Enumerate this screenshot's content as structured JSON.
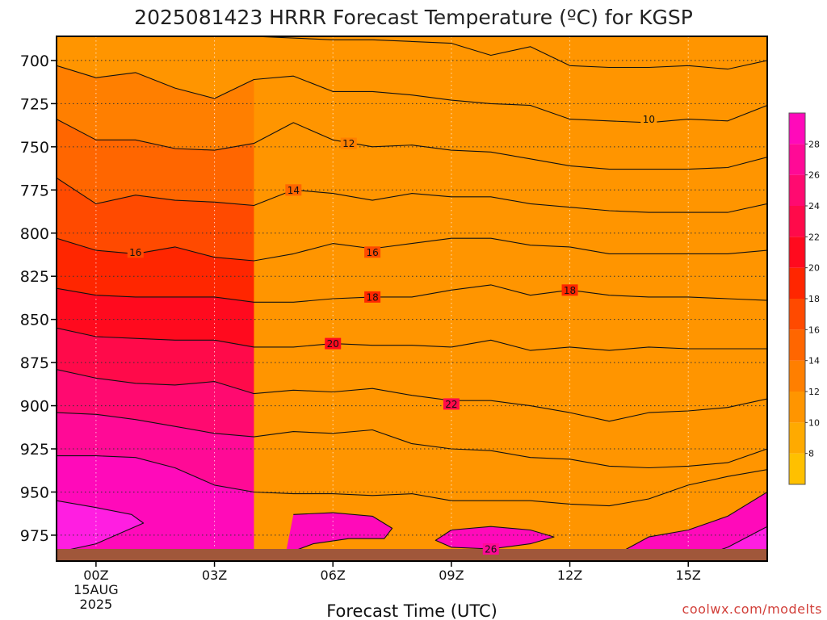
{
  "chart_data": {
    "type": "contour",
    "title": "2025081423 HRRR Forecast Temperature (ºC) for KGSP",
    "xlabel": "Forecast Time (UTC)",
    "ylabel": "",
    "credit": "coolwx.com/modelts",
    "x_ticks": [
      {
        "hour": 0,
        "label": "00Z",
        "sub": [
          "15AUG",
          "2025"
        ]
      },
      {
        "hour": 3,
        "label": "03Z",
        "sub": []
      },
      {
        "hour": 6,
        "label": "06Z",
        "sub": []
      },
      {
        "hour": 9,
        "label": "09Z",
        "sub": []
      },
      {
        "hour": 12,
        "label": "12Z",
        "sub": []
      },
      {
        "hour": 15,
        "label": "15Z",
        "sub": []
      }
    ],
    "xlim": [
      -1,
      17
    ],
    "y_ticks": [
      700,
      725,
      750,
      775,
      800,
      825,
      850,
      875,
      900,
      925,
      950,
      975
    ],
    "ylim": [
      686,
      990
    ],
    "y_inverted": true,
    "grid": true,
    "surface_color": "#a0573a",
    "colorbar": {
      "ticks": [
        8,
        10,
        12,
        14,
        16,
        18,
        20,
        22,
        24,
        26,
        28
      ],
      "range": [
        6,
        30
      ],
      "colors": [
        "#ffc000",
        "#ffaa00",
        "#ff9500",
        "#ff7f00",
        "#ff6600",
        "#ff4a00",
        "#ff2600",
        "#ff0a1e",
        "#ff0a4a",
        "#ff0a70",
        "#ff0a96",
        "#ff0aba",
        "#ff1ee1"
      ]
    },
    "contour_labels": [
      {
        "hour": 14,
        "p": 734,
        "text": "10"
      },
      {
        "hour": 6.4,
        "p": 748,
        "text": "12"
      },
      {
        "hour": 5.0,
        "p": 775,
        "text": "14"
      },
      {
        "hour": 1.0,
        "p": 811,
        "text": "16"
      },
      {
        "hour": 7.0,
        "p": 811,
        "text": "16"
      },
      {
        "hour": 7.0,
        "p": 837,
        "text": "18"
      },
      {
        "hour": 12.0,
        "p": 833,
        "text": "18"
      },
      {
        "hour": 6.0,
        "p": 864,
        "text": "20"
      },
      {
        "hour": 9.0,
        "p": 899,
        "text": "22"
      },
      {
        "hour": 10.0,
        "p": 983,
        "text": "26"
      }
    ],
    "contours": [
      {
        "level": 8,
        "x": [
          4.0,
          6.0,
          7.0,
          8.0,
          9.0,
          10.0,
          11.0,
          12.0,
          13.0,
          14.0,
          15.0,
          16.0,
          17.0
        ],
        "p": [
          686,
          688,
          688,
          689,
          690,
          697,
          692,
          703,
          704,
          704,
          703,
          705,
          700
        ]
      },
      {
        "level": 10,
        "x": [
          -1.0,
          0.0,
          1.0,
          2.0,
          3.0,
          4.0,
          5.0,
          6.0,
          7.0,
          8.0,
          9.0,
          10.0,
          11.0,
          12.0,
          13.0,
          14.0,
          15.0,
          16.0,
          17.0
        ],
        "p": [
          703,
          710,
          707,
          716,
          722,
          711,
          709,
          718,
          718,
          720,
          723,
          725,
          726,
          734,
          735,
          736,
          734,
          735,
          726
        ]
      },
      {
        "level": 12,
        "x": [
          -1.0,
          0.0,
          1.0,
          2.0,
          3.0,
          4.0,
          5.0,
          6.0,
          7.0,
          8.0,
          9.0,
          10.0,
          11.0,
          12.0,
          13.0,
          14.0,
          15.0,
          16.0,
          17.0
        ],
        "p": [
          734,
          746,
          746,
          751,
          752,
          748,
          736,
          746,
          750,
          749,
          752,
          753,
          757,
          761,
          763,
          763,
          763,
          762,
          756
        ]
      },
      {
        "level": 14,
        "x": [
          -1.0,
          0.0,
          1.0,
          2.0,
          3.0,
          4.0,
          5.0,
          6.0,
          7.0,
          8.0,
          9.0,
          10.0,
          11.0,
          12.0,
          13.0,
          14.0,
          15.0,
          16.0,
          17.0
        ],
        "p": [
          768,
          783,
          778,
          781,
          782,
          784,
          775,
          777,
          781,
          777,
          779,
          779,
          783,
          785,
          787,
          788,
          788,
          788,
          783
        ]
      },
      {
        "level": 16,
        "x": [
          -1.0,
          0.0,
          1.0,
          2.0,
          3.0,
          4.0,
          5.0,
          6.0,
          7.0,
          8.0,
          9.0,
          10.0,
          11.0,
          12.0,
          13.0,
          14.0,
          15.0,
          16.0,
          17.0
        ],
        "p": [
          803,
          810,
          812,
          808,
          814,
          816,
          812,
          806,
          809,
          806,
          803,
          803,
          807,
          808,
          812,
          812,
          812,
          812,
          810
        ]
      },
      {
        "level": 18,
        "x": [
          -1.0,
          0.0,
          1.0,
          2.0,
          3.0,
          4.0,
          5.0,
          6.0,
          7.0,
          8.0,
          9.0,
          10.0,
          11.0,
          12.0,
          13.0,
          14.0,
          15.0,
          16.0,
          17.0
        ],
        "p": [
          832,
          836,
          837,
          837,
          837,
          840,
          840,
          838,
          837,
          837,
          833,
          830,
          836,
          833,
          836,
          837,
          837,
          838,
          839
        ]
      },
      {
        "level": 20,
        "x": [
          -1.0,
          0.0,
          1.0,
          2.0,
          3.0,
          4.0,
          5.0,
          6.0,
          7.0,
          8.0,
          9.0,
          10.0,
          11.0,
          12.0,
          13.0,
          14.0,
          15.0,
          16.0,
          17.0
        ],
        "p": [
          855,
          860,
          861,
          862,
          862,
          866,
          866,
          864,
          865,
          865,
          866,
          862,
          868,
          866,
          868,
          866,
          867,
          867,
          867
        ]
      },
      {
        "level": 22,
        "x": [
          -1.0,
          0.0,
          1.0,
          2.0,
          3.0,
          4.0,
          5.0,
          6.0,
          7.0,
          8.0,
          9.0,
          10.0,
          11.0,
          12.0,
          13.0,
          14.0,
          15.0,
          16.0,
          17.0
        ],
        "p": [
          879,
          884,
          887,
          888,
          886,
          893,
          891,
          892,
          890,
          894,
          897,
          897,
          900,
          904,
          909,
          904,
          903,
          901,
          896
        ]
      },
      {
        "level": 24,
        "x": [
          -1.0,
          0.0,
          1.0,
          2.0,
          3.0,
          4.0,
          5.0,
          6.0,
          7.0,
          8.0,
          9.0,
          10.0,
          11.0,
          12.0,
          13.0,
          14.0,
          15.0,
          16.0,
          17.0
        ],
        "p": [
          904,
          905,
          908,
          912,
          916,
          918,
          915,
          916,
          914,
          922,
          925,
          926,
          930,
          931,
          935,
          936,
          935,
          933,
          925
        ]
      },
      {
        "level": 26,
        "x": [
          -1.0,
          0.0,
          1.0,
          2.0,
          3.0,
          4.0,
          5.0,
          6.0,
          7.0,
          8.0,
          9.0,
          10.0,
          11.0,
          12.0,
          13.0,
          14.0,
          15.0,
          16.0,
          17.0
        ],
        "p": [
          929,
          929,
          930,
          936,
          946,
          950,
          951,
          951,
          952,
          951,
          955,
          955,
          955,
          957,
          958,
          954,
          946,
          941,
          937
        ]
      },
      {
        "level": 28,
        "x": [
          -1.0,
          0.0,
          0.9,
          1.2,
          0.8,
          0.0,
          -1.0
        ],
        "p": [
          955,
          959,
          963,
          968,
          972,
          980,
          985
        ]
      },
      {
        "level": 26,
        "x": [
          4.8,
          5.5,
          6.4,
          7.3,
          7.5,
          7.0,
          6.0,
          5.0
        ],
        "p": [
          986,
          980,
          977,
          977,
          971,
          964,
          962,
          963
        ]
      },
      {
        "level": 26,
        "x": [
          8.6,
          9.0,
          10.0,
          11.0,
          11.6,
          11.0,
          10.0,
          9.0,
          8.6
        ],
        "p": [
          978,
          972,
          970,
          972,
          976,
          980,
          983,
          982,
          978
        ]
      },
      {
        "level": 26,
        "x": [
          13.2,
          14.0,
          15.0,
          16.0,
          17.0
        ],
        "p": [
          986,
          976,
          972,
          964,
          950
        ]
      },
      {
        "level": 28,
        "x": [
          15.5,
          16.0,
          17.0
        ],
        "p": [
          986,
          982,
          970
        ]
      }
    ]
  }
}
